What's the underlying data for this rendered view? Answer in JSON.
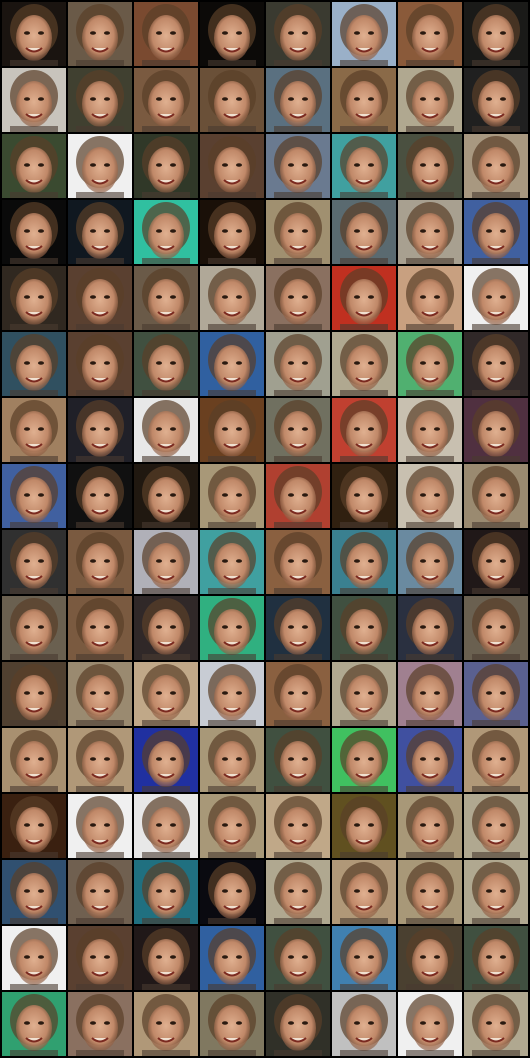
{
  "grid": {
    "tiles": [
      [
        "#1a1410",
        "#6a5a48",
        "#7a4a30",
        "#0c0a08",
        "#3a3a30",
        "#9ab0c8",
        "#8a5a3a",
        "#1a1a18"
      ],
      [
        "#c8c4bc",
        "#404030",
        "#7a5a40",
        "#6a5038",
        "#5a7080",
        "#8a6a48",
        "#b0a890",
        "#202020"
      ],
      [
        "#3a4a30",
        "#f0f0f0",
        "#303828",
        "#5a4030",
        "#6a7a90",
        "#40a0a0",
        "#4a5040",
        "#a89880"
      ],
      [
        "#0a0a0a",
        "#101820",
        "#30c0a0",
        "#1a1008",
        "#a09070",
        "#5a6a70",
        "#a8a090",
        "#4060a0"
      ],
      [
        "#302820",
        "#5a4030",
        "#6a5a48",
        "#b0a898",
        "#8a7060",
        "#c03020",
        "#c8a080",
        "#f0f0f0"
      ],
      [
        "#305060",
        "#5a4030",
        "#405040",
        "#3060a0",
        "#a0a090",
        "#b0a890",
        "#50b070",
        "#302828"
      ],
      [
        "#a08060",
        "#202028",
        "#e8e8e8",
        "#6a4020",
        "#707060",
        "#c04030",
        "#c8c0b0",
        "#503040"
      ],
      [
        "#4060a0",
        "#101010",
        "#201810",
        "#a89878",
        "#b04030",
        "#302010",
        "#c8c0b0",
        "#9a8a70"
      ],
      [
        "#303030",
        "#7a5a40",
        "#b0b0b8",
        "#40a0a0",
        "#8a6040",
        "#3a8090",
        "#6a8aa0",
        "#201818"
      ],
      [
        "#6a6050",
        "#7a5a40",
        "#302828",
        "#30b080",
        "#203040",
        "#405040",
        "#2a3040",
        "#6a6050"
      ],
      [
        "#504030",
        "#9a8a70",
        "#c0a888",
        "#c8ccd4",
        "#8a6040",
        "#b0a890",
        "#a08090",
        "#5a6090"
      ],
      [
        "#a89070",
        "#b09878",
        "#2030a0",
        "#a89878",
        "#405040",
        "#40c060",
        "#4050a0",
        "#b09878"
      ],
      [
        "#3a2010",
        "#f0f0f0",
        "#e8e8e8",
        "#a89878",
        "#c0a888",
        "#605020",
        "#a89878",
        "#b0a890"
      ],
      [
        "#305070",
        "#706050",
        "#207080",
        "#0a0a10",
        "#b0a890",
        "#b09878",
        "#a89878",
        "#b0a890"
      ],
      [
        "#f0f0f0",
        "#5a4030",
        "#201818",
        "#3060a0",
        "#405040",
        "#4080b0",
        "#4a4030",
        "#405040"
      ],
      [
        "#30a070",
        "#8a7060",
        "#b09878",
        "#807860",
        "#303028",
        "#c0c0c0",
        "#f0f0f0",
        "#b0a890"
      ]
    ]
  }
}
